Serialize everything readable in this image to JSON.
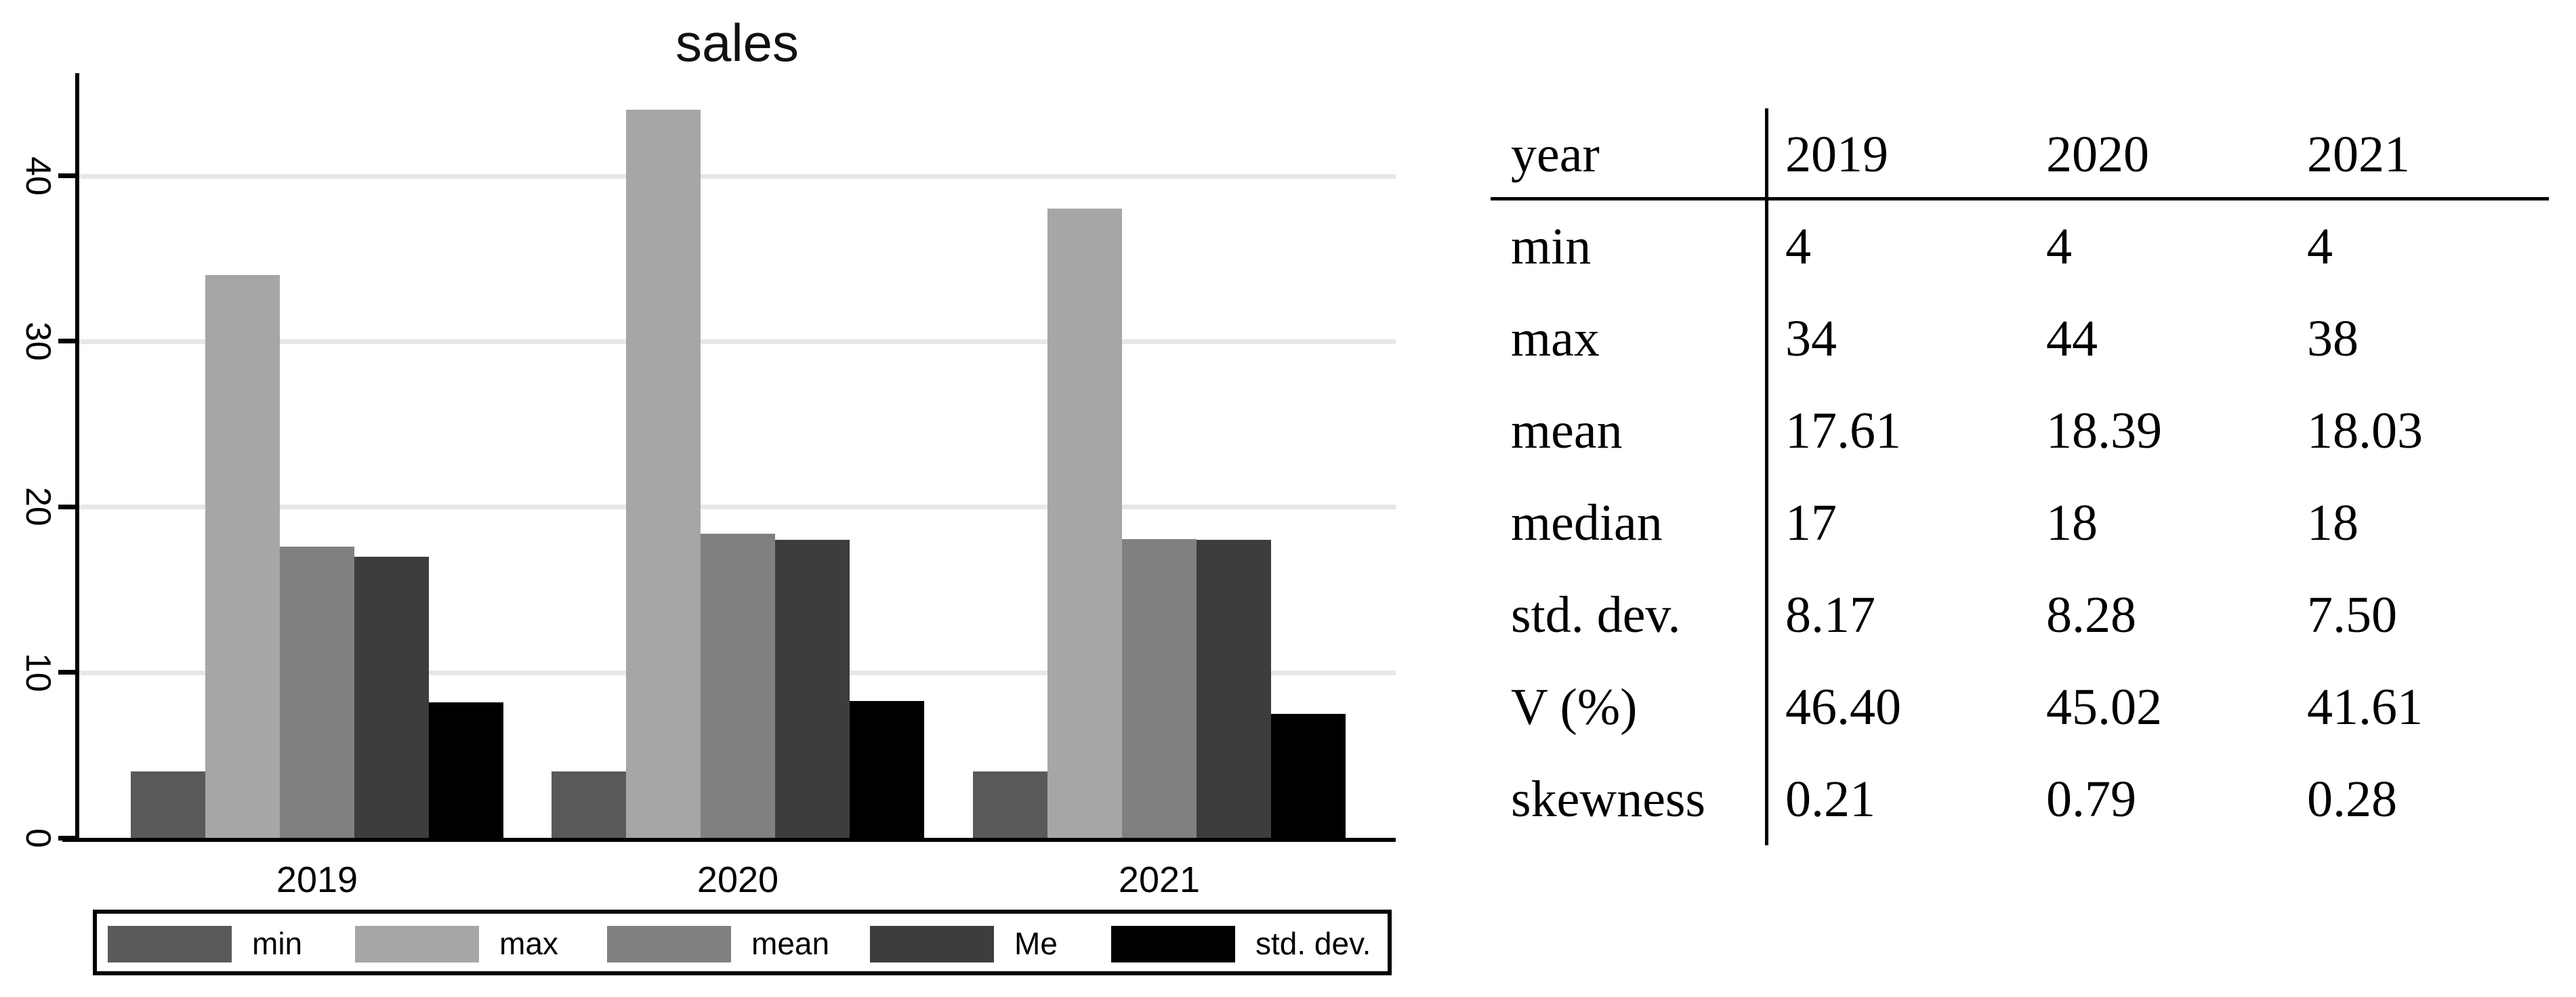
{
  "chart_data": {
    "type": "bar",
    "title": "sales",
    "categories": [
      "2019",
      "2020",
      "2021"
    ],
    "series": [
      {
        "name": "min",
        "color": "#595959",
        "values": [
          4,
          4,
          4
        ]
      },
      {
        "name": "max",
        "color": "#a6a6a6",
        "values": [
          34,
          44,
          38
        ]
      },
      {
        "name": "mean",
        "color": "#808080",
        "values": [
          17.61,
          18.39,
          18.03
        ]
      },
      {
        "name": "Me",
        "color": "#3d3d3d",
        "values": [
          17,
          18,
          18
        ]
      },
      {
        "name": "std. dev.",
        "color": "#000000",
        "values": [
          8.17,
          8.28,
          7.5
        ]
      }
    ],
    "legend": [
      "min",
      "max",
      "mean",
      "Me",
      "std. dev."
    ],
    "legend_position": "bottom",
    "y_ticks": [
      0,
      10,
      20,
      30,
      40
    ],
    "ylim": [
      0,
      46.2
    ],
    "xlabel": "",
    "ylabel": "",
    "grid": true,
    "gridline_color": "#e7e7e7",
    "axis_color": "#000000"
  },
  "table": {
    "header": [
      "year",
      "2019",
      "2020",
      "2021"
    ],
    "rows": [
      [
        "min",
        "4",
        "4",
        "4"
      ],
      [
        "max",
        "34",
        "44",
        "38"
      ],
      [
        "mean",
        "17.61",
        "18.39",
        "18.03"
      ],
      [
        "median",
        "17",
        "18",
        "18"
      ],
      [
        "std. dev.",
        "8.17",
        "8.28",
        "7.50"
      ],
      [
        "V (%)",
        "46.40",
        "45.02",
        "41.61"
      ],
      [
        "skewness",
        "0.21",
        "0.79",
        "0.28"
      ]
    ]
  }
}
